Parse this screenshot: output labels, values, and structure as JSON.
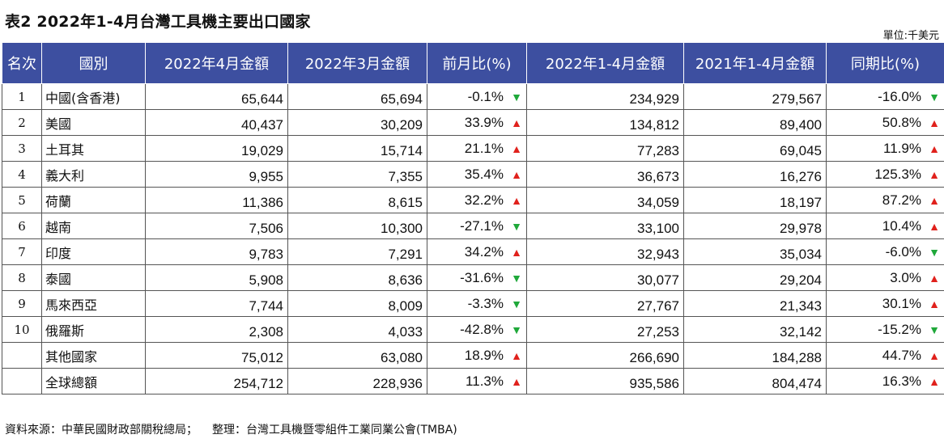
{
  "title": "表2  2022年1-4月台灣工具機主要出口國家",
  "unit": "單位:千美元",
  "headers": [
    "名次",
    "國別",
    "2022年4月金額",
    "2022年3月金額",
    "前月比(%)",
    "2022年1-4月金額",
    "2021年1-4月金額",
    "同期比(%)"
  ],
  "rows": [
    {
      "rank": "1",
      "country": "中國(含香港)",
      "apr": "65,644",
      "mar": "65,694",
      "mom": "-0.1%",
      "mom_dir": "down",
      "ytd22": "234,929",
      "ytd21": "279,567",
      "yoy": "-16.0%",
      "yoy_dir": "down"
    },
    {
      "rank": "2",
      "country": "美國",
      "apr": "40,437",
      "mar": "30,209",
      "mom": "33.9%",
      "mom_dir": "up",
      "ytd22": "134,812",
      "ytd21": "89,400",
      "yoy": "50.8%",
      "yoy_dir": "up"
    },
    {
      "rank": "3",
      "country": "土耳其",
      "apr": "19,029",
      "mar": "15,714",
      "mom": "21.1%",
      "mom_dir": "up",
      "ytd22": "77,283",
      "ytd21": "69,045",
      "yoy": "11.9%",
      "yoy_dir": "up"
    },
    {
      "rank": "4",
      "country": "義大利",
      "apr": "9,955",
      "mar": "7,355",
      "mom": "35.4%",
      "mom_dir": "up",
      "ytd22": "36,673",
      "ytd21": "16,276",
      "yoy": "125.3%",
      "yoy_dir": "up"
    },
    {
      "rank": "5",
      "country": "荷蘭",
      "apr": "11,386",
      "mar": "8,615",
      "mom": "32.2%",
      "mom_dir": "up",
      "ytd22": "34,059",
      "ytd21": "18,197",
      "yoy": "87.2%",
      "yoy_dir": "up"
    },
    {
      "rank": "6",
      "country": "越南",
      "apr": "7,506",
      "mar": "10,300",
      "mom": "-27.1%",
      "mom_dir": "down",
      "ytd22": "33,100",
      "ytd21": "29,978",
      "yoy": "10.4%",
      "yoy_dir": "up"
    },
    {
      "rank": "7",
      "country": "印度",
      "apr": "9,783",
      "mar": "7,291",
      "mom": "34.2%",
      "mom_dir": "up",
      "ytd22": "32,943",
      "ytd21": "35,034",
      "yoy": "-6.0%",
      "yoy_dir": "down"
    },
    {
      "rank": "8",
      "country": "泰國",
      "apr": "5,908",
      "mar": "8,636",
      "mom": "-31.6%",
      "mom_dir": "down",
      "ytd22": "30,077",
      "ytd21": "29,204",
      "yoy": "3.0%",
      "yoy_dir": "up"
    },
    {
      "rank": "9",
      "country": "馬來西亞",
      "apr": "7,744",
      "mar": "8,009",
      "mom": "-3.3%",
      "mom_dir": "down",
      "ytd22": "27,767",
      "ytd21": "21,343",
      "yoy": "30.1%",
      "yoy_dir": "up"
    },
    {
      "rank": "10",
      "country": "俄羅斯",
      "apr": "2,308",
      "mar": "4,033",
      "mom": "-42.8%",
      "mom_dir": "down",
      "ytd22": "27,253",
      "ytd21": "32,142",
      "yoy": "-15.2%",
      "yoy_dir": "down"
    },
    {
      "rank": "",
      "country": "其他國家",
      "apr": "75,012",
      "mar": "63,080",
      "mom": "18.9%",
      "mom_dir": "up",
      "ytd22": "266,690",
      "ytd21": "184,288",
      "yoy": "44.7%",
      "yoy_dir": "up"
    },
    {
      "rank": "",
      "country": "全球總額",
      "apr": "254,712",
      "mar": "228,936",
      "mom": "11.3%",
      "mom_dir": "up",
      "ytd22": "935,586",
      "ytd21": "804,474",
      "yoy": "16.3%",
      "yoy_dir": "up"
    }
  ],
  "footer": {
    "source": "資料來源：中華民國財政部關稅總局；",
    "compiled": "整理：台灣工具機暨零組件工業同業公會(TMBA)"
  },
  "colors": {
    "header_bg": "#3d4fa0",
    "up": "#e0211c",
    "down": "#1fa83a"
  },
  "icons": {
    "up": "▲",
    "down": "▼"
  }
}
